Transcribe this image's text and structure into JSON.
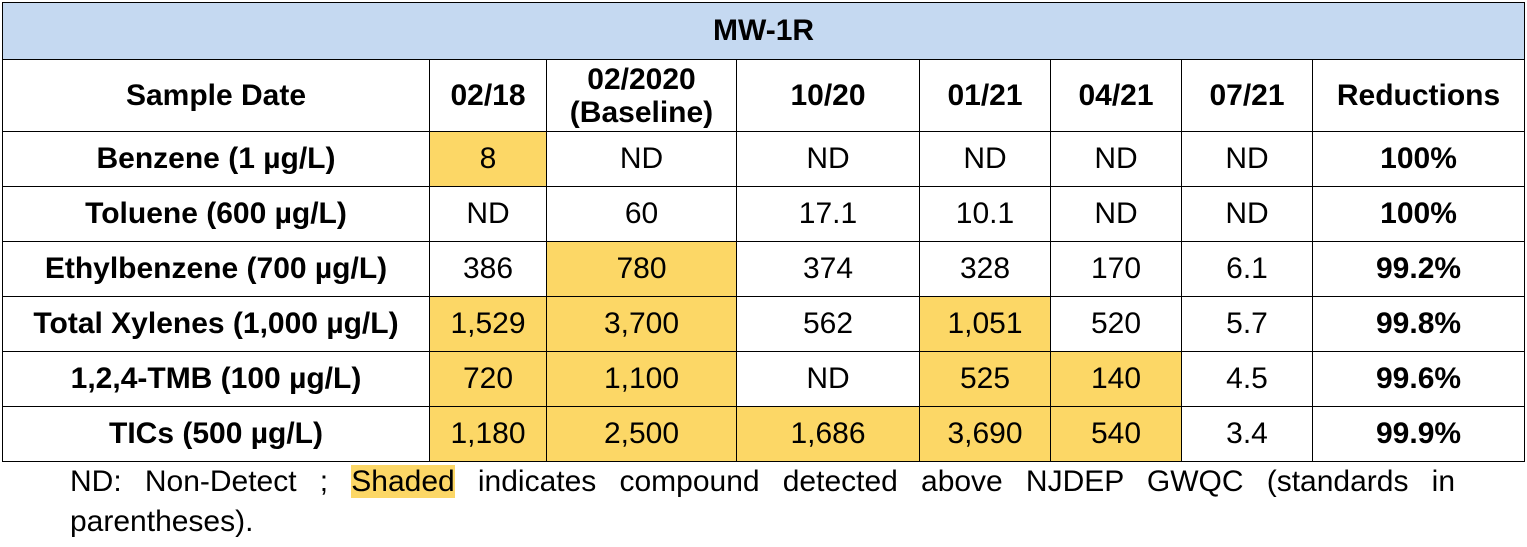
{
  "table": {
    "title": "MW-1R",
    "header": {
      "label": "Sample Date",
      "dates": [
        "02/18",
        "02/2020 (Baseline)",
        "10/20",
        "01/21",
        "04/21",
        "07/21"
      ],
      "reductions": "Reductions"
    },
    "rows": [
      {
        "label": "Benzene (1 µg/L)",
        "values": [
          "8",
          "ND",
          "ND",
          "ND",
          "ND",
          "ND"
        ],
        "shaded": [
          true,
          false,
          false,
          false,
          false,
          false
        ],
        "reduction": "100%"
      },
      {
        "label": "Toluene (600 µg/L)",
        "values": [
          "ND",
          "60",
          "17.1",
          "10.1",
          "ND",
          "ND"
        ],
        "shaded": [
          false,
          false,
          false,
          false,
          false,
          false
        ],
        "reduction": "100%"
      },
      {
        "label": "Ethylbenzene (700 µg/L)",
        "values": [
          "386",
          "780",
          "374",
          "328",
          "170",
          "6.1"
        ],
        "shaded": [
          false,
          true,
          false,
          false,
          false,
          false
        ],
        "reduction": "99.2%"
      },
      {
        "label": "Total Xylenes (1,000 µg/L)",
        "values": [
          "1,529",
          "3,700",
          "562",
          "1,051",
          "520",
          "5.7"
        ],
        "shaded": [
          true,
          true,
          false,
          true,
          false,
          false
        ],
        "reduction": "99.8%"
      },
      {
        "label": "1,2,4-TMB (100 µg/L)",
        "values": [
          "720",
          "1,100",
          "ND",
          "525",
          "140",
          "4.5"
        ],
        "shaded": [
          true,
          true,
          false,
          true,
          true,
          false
        ],
        "reduction": "99.6%"
      },
      {
        "label": "TICs (500 µg/L)",
        "values": [
          "1,180",
          "2,500",
          "1,686",
          "3,690",
          "540",
          "3.4"
        ],
        "shaded": [
          true,
          true,
          true,
          true,
          true,
          false
        ],
        "reduction": "99.9%"
      }
    ]
  },
  "note": {
    "prefix": "ND: Non-Detect ; ",
    "shaded_word": "Shaded",
    "suffix": " indicates compound detected above NJDEP GWQC (standards in parentheses)."
  },
  "colors": {
    "title_bg": "#c5d9f1",
    "shade": "#fcd766"
  }
}
